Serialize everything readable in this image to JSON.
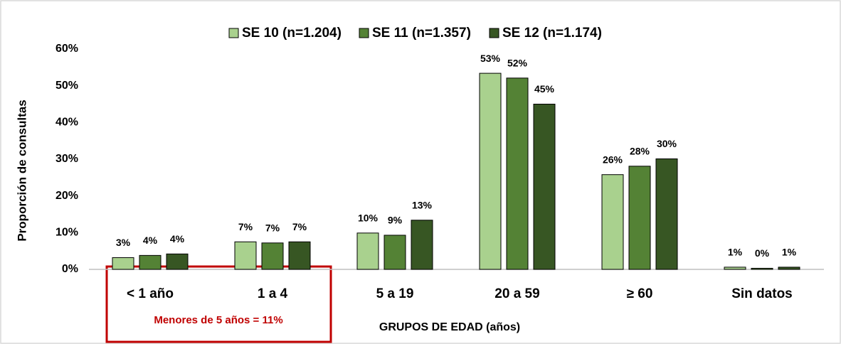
{
  "chart_data": {
    "type": "bar",
    "ylabel": "Proporción de consultas",
    "xlabel": "GRUPOS DE EDAD (años)",
    "categories": [
      "< 1 año",
      "1 a 4",
      "5 a 19",
      "20 a 59",
      "≥ 60",
      "Sin datos"
    ],
    "series": [
      {
        "name": "SE 10 (n=1.204)",
        "color": "#a9d18e",
        "values": [
          3.2,
          7.5,
          9.9,
          53.4,
          25.8,
          0.6
        ],
        "value_labels": [
          "3%",
          "7%",
          "10%",
          "53%",
          "26%",
          "1%"
        ]
      },
      {
        "name": "SE 11 (n=1.357)",
        "color": "#548235",
        "values": [
          3.8,
          7.2,
          9.3,
          52.1,
          28.1,
          0.3
        ],
        "value_labels": [
          "4%",
          "7%",
          "9%",
          "52%",
          "28%",
          "0%"
        ]
      },
      {
        "name": "SE 12 (n=1.174)",
        "color": "#375623",
        "values": [
          4.2,
          7.5,
          13.4,
          45.0,
          30.1,
          0.6
        ],
        "value_labels": [
          "4%",
          "7%",
          "13%",
          "45%",
          "30%",
          "1%"
        ]
      }
    ],
    "ylim": [
      0,
      60
    ],
    "yticks": [
      {
        "value": 0,
        "label": "0%"
      },
      {
        "value": 10,
        "label": "10%"
      },
      {
        "value": 20,
        "label": "20%"
      },
      {
        "value": 30,
        "label": "30%"
      },
      {
        "value": 40,
        "label": "40%"
      },
      {
        "value": 50,
        "label": "50%"
      },
      {
        "value": 60,
        "label": "60%"
      }
    ],
    "annotations": [
      "Menores de 5 años = 11%"
    ],
    "grid": false
  }
}
